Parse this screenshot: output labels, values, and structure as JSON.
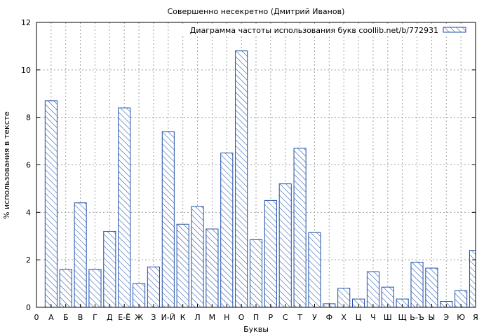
{
  "chart_data": {
    "type": "bar",
    "title": "Совершенно несекретно (Дмитрий Иванов)",
    "xlabel": "Буквы",
    "ylabel": "% использования в тексте",
    "ylim": [
      0,
      12
    ],
    "yticks": [
      0,
      2,
      4,
      6,
      8,
      10,
      12
    ],
    "grid": true,
    "legend_position": "top-right",
    "x_tick_labels": [
      "0",
      "А",
      "Б",
      "В",
      "Г",
      "Д",
      "Е-Ё",
      "Ж",
      "З",
      "И-Й",
      "К",
      "Л",
      "М",
      "Н",
      "О",
      "П",
      "Р",
      "С",
      "Т",
      "У",
      "Ф",
      "Х",
      "Ц",
      "Ч",
      "Ш",
      "Щ",
      "Ь-Ъ",
      "Ы",
      "Э",
      "Ю",
      "Я"
    ],
    "categories": [
      "А",
      "Б",
      "В",
      "Г",
      "Д",
      "Е-Ё",
      "Ж",
      "З",
      "И-Й",
      "К",
      "Л",
      "М",
      "Н",
      "О",
      "П",
      "Р",
      "С",
      "Т",
      "У",
      "Ф",
      "Х",
      "Ц",
      "Ч",
      "Ш",
      "Щ",
      "Ь-Ъ",
      "Ы",
      "Э",
      "Ю",
      "Я"
    ],
    "series": [
      {
        "name": "Диаграмма частоты использования букв coollib.net/b/772931",
        "values": [
          8.7,
          1.6,
          4.4,
          1.6,
          3.2,
          8.4,
          1.0,
          1.7,
          7.4,
          3.5,
          4.25,
          3.3,
          6.5,
          10.8,
          2.85,
          4.5,
          5.2,
          6.7,
          3.15,
          0.15,
          0.8,
          0.35,
          1.5,
          0.85,
          0.35,
          1.9,
          1.65,
          0.25,
          0.7,
          2.4
        ]
      }
    ],
    "colors": {
      "bar_stroke": "#1f4fa8",
      "hatch": "#1f4fa8",
      "grid": "#a0a0a0"
    }
  }
}
